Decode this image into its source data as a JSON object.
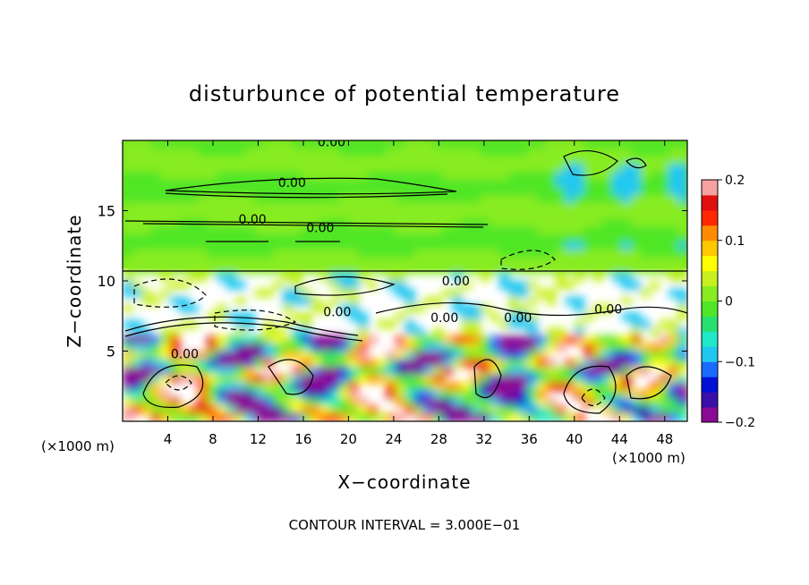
{
  "chart_data": {
    "type": "heatmap",
    "title": "disturbunce of potential temperature",
    "xlabel": "X−coordinate",
    "ylabel": "Z−coordinate",
    "x_unit": "(×1000 m)",
    "z_unit": "(×1000 m)",
    "xlim": [
      0,
      50
    ],
    "ylim": [
      0,
      20
    ],
    "x_ticks": [
      4,
      8,
      12,
      16,
      20,
      24,
      28,
      32,
      36,
      40,
      44,
      48
    ],
    "y_ticks": [
      5,
      10,
      15
    ],
    "colorbar": {
      "range": [
        -0.2,
        0.2
      ],
      "tick_values": [
        0.2,
        0.1,
        0,
        -0.1,
        -0.2
      ],
      "tick_labels": [
        "0.2",
        "0.1",
        "0",
        "−0.1",
        "−0.2"
      ],
      "colors": [
        "#8a0a96",
        "#3a10a8",
        "#0010d6",
        "#1a6aff",
        "#20c8f0",
        "#20e8c8",
        "#28e070",
        "#50e628",
        "#88ec20",
        "#c8f020",
        "#ffff00",
        "#ffc800",
        "#ff8c00",
        "#ff2800",
        "#e01010",
        "#f6a0a0"
      ]
    },
    "contour_labels": [
      {
        "text": "0.00",
        "x": 18.5,
        "z": 19.9
      },
      {
        "text": "0.00",
        "x": 15.0,
        "z": 17.0
      },
      {
        "text": "0.00",
        "x": 11.5,
        "z": 14.4
      },
      {
        "text": "0.00",
        "x": 17.5,
        "z": 13.8
      },
      {
        "text": "0.00",
        "x": 29.5,
        "z": 10.0
      },
      {
        "text": "0.00",
        "x": 19.0,
        "z": 7.8
      },
      {
        "text": "0.00",
        "x": 28.5,
        "z": 7.4
      },
      {
        "text": "0.00",
        "x": 35.0,
        "z": 7.4
      },
      {
        "text": "0.00",
        "x": 43.0,
        "z": 8.0
      },
      {
        "text": "0.00",
        "x": 5.5,
        "z": 4.8
      }
    ],
    "footer": "CONTOUR INTERVAL = 3.000E−01"
  }
}
